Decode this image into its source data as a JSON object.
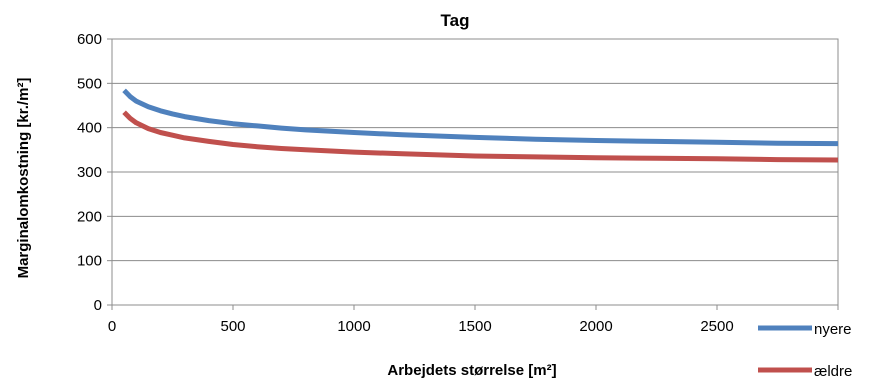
{
  "chart_data": {
    "type": "line",
    "title": "Tag",
    "xlabel": "Arbejdets størrelse [m²]",
    "ylabel": "Marginalomkostning [kr./m²]",
    "xlim": [
      0,
      3000
    ],
    "ylim": [
      0,
      600
    ],
    "xticks": [
      "0",
      "500",
      "1000",
      "1500",
      "2000",
      "2500"
    ],
    "yticks": [
      "0",
      "100",
      "200",
      "300",
      "400",
      "500",
      "600"
    ],
    "x": [
      50,
      75,
      100,
      150,
      200,
      250,
      300,
      400,
      500,
      600,
      700,
      800,
      1000,
      1200,
      1500,
      1750,
      2000,
      2250,
      2500,
      2750,
      3000
    ],
    "series": [
      {
        "name": "nyere",
        "color": "#4f81bd",
        "values": [
          484,
          470,
          460,
          447,
          438,
          431,
          425,
          416,
          409,
          404,
          399,
          395,
          389,
          384,
          378,
          374,
          371,
          369,
          367,
          365,
          364
        ]
      },
      {
        "name": "ældre",
        "color": "#c0504d",
        "values": [
          435,
          421,
          411,
          398,
          389,
          383,
          377,
          369,
          362,
          357,
          353,
          350,
          345,
          341,
          336,
          334,
          332,
          331,
          330,
          328,
          327
        ]
      }
    ],
    "grid": "horizontal",
    "legend_position": "bottom-right"
  }
}
